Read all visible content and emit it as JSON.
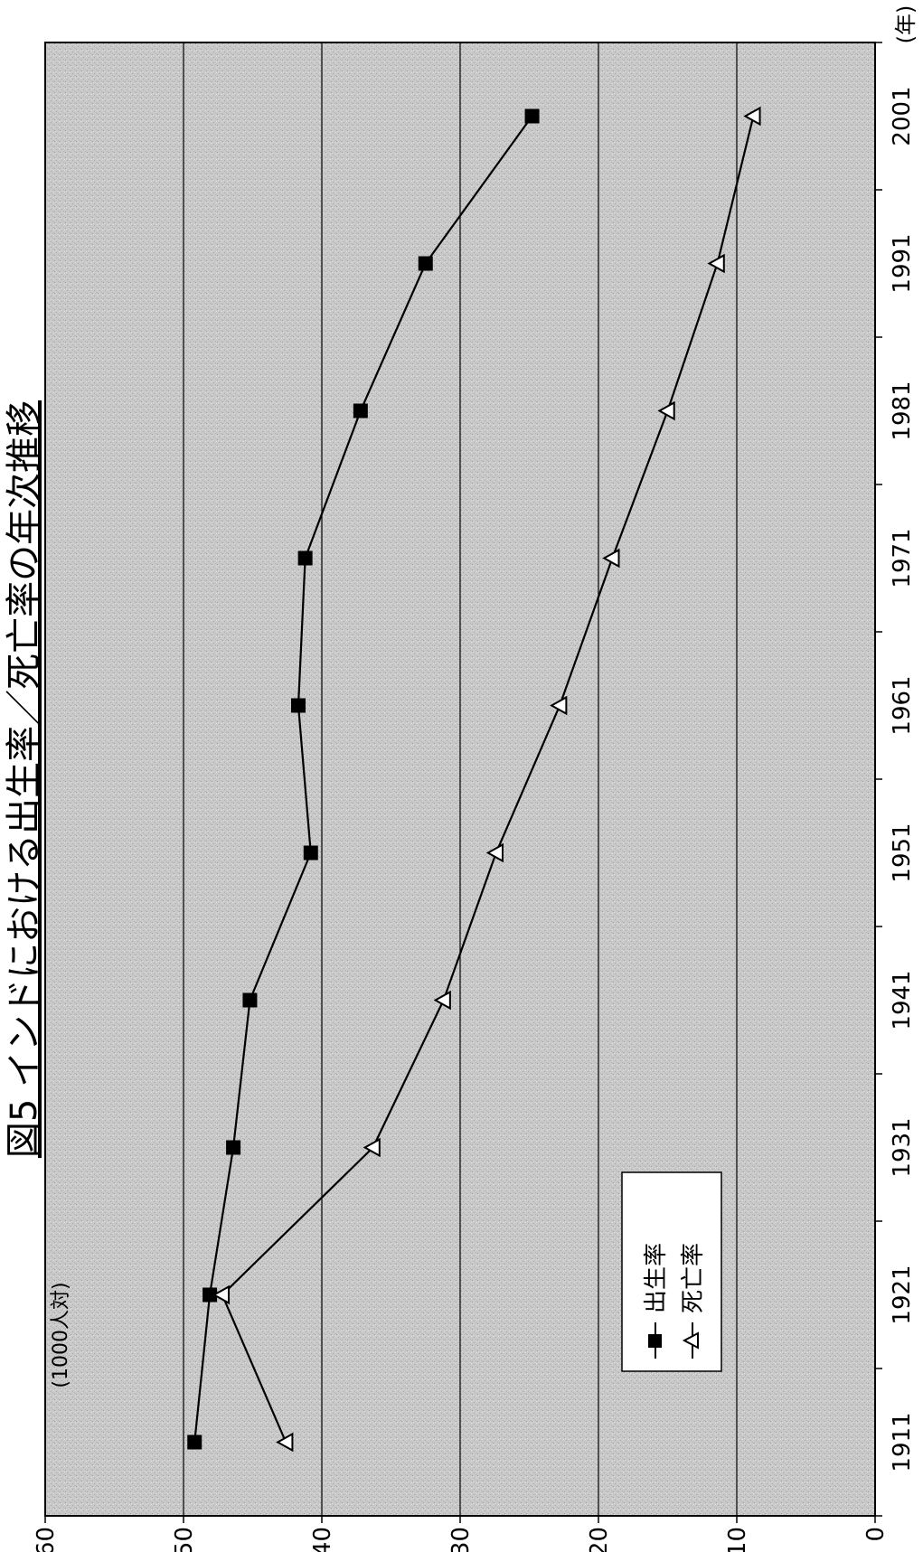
{
  "chart_data": {
    "type": "line",
    "title": "図5 インドにおける出生率／死亡率の年次推移",
    "ylabel": "(1000人対)",
    "xlabel": "(年)",
    "x": [
      1911,
      1921,
      1931,
      1941,
      1951,
      1961,
      1971,
      1981,
      1991,
      2001
    ],
    "x_ticks": [
      "1911",
      "1921",
      "1931",
      "1941",
      "1951",
      "1961",
      "1971",
      "1981",
      "1991",
      "2001"
    ],
    "y_ticks": [
      "0",
      "10",
      "20",
      "30",
      "40",
      "50",
      "60"
    ],
    "xlim": [
      1910,
      2000
    ],
    "ylim": [
      0,
      60
    ],
    "grid": true,
    "legend_position": "bottom-left",
    "series": [
      {
        "name": "出生率",
        "marker": "square",
        "color": "#000000",
        "x": [
          1911,
          1921,
          1931,
          1941,
          1951,
          1961,
          1971,
          1981,
          1991,
          2001
        ],
        "values": [
          49.2,
          48.1,
          46.4,
          45.2,
          40.8,
          41.7,
          41.2,
          37.2,
          32.5,
          24.8
        ]
      },
      {
        "name": "死亡率",
        "marker": "triangle-open",
        "color": "#000000",
        "x": [
          1911,
          1921,
          1931,
          1941,
          1951,
          1961,
          1971,
          1981,
          1991,
          2001
        ],
        "values": [
          42.6,
          47.2,
          36.3,
          31.2,
          27.4,
          22.8,
          19.0,
          15.0,
          11.4,
          8.8
        ]
      }
    ]
  }
}
